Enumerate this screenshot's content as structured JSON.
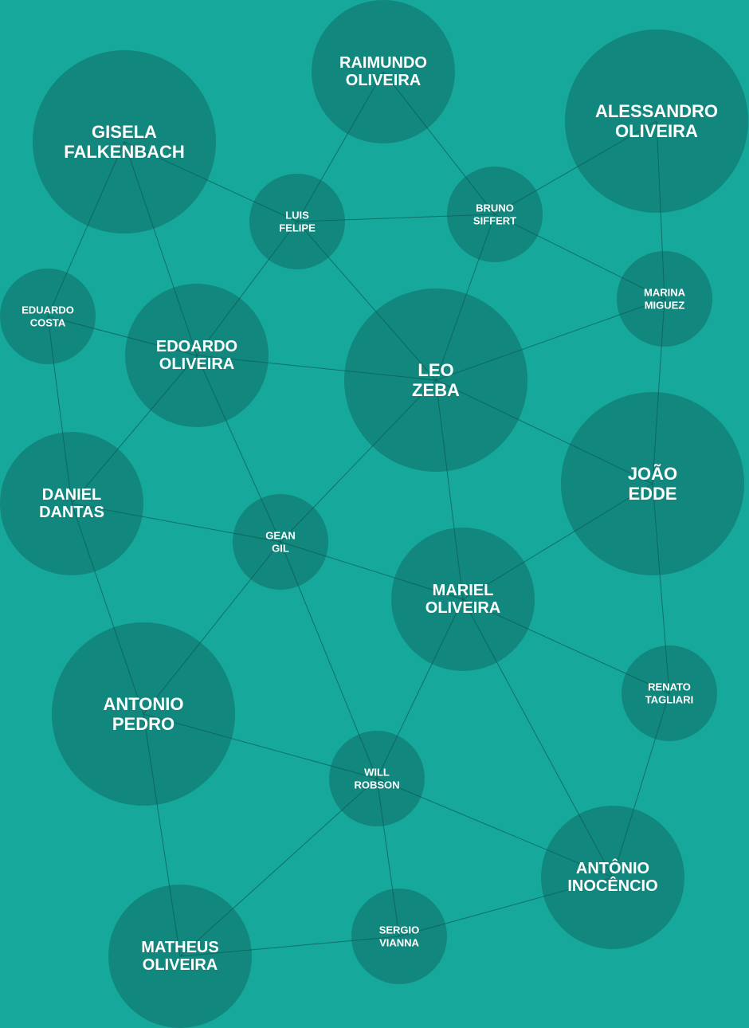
{
  "colors": {
    "background": "#17a89c",
    "node_fill": "#12877d",
    "edge": "#0b5e57",
    "label": "#ffffff"
  },
  "nodes": [
    {
      "id": "raimundo",
      "lines": [
        "RAIMUNDO",
        "OLIVEIRA"
      ],
      "size": "m"
    },
    {
      "id": "gisela",
      "lines": [
        "GISELA",
        "FALKENBACH"
      ],
      "size": "l"
    },
    {
      "id": "alessandro",
      "lines": [
        "ALESSANDRO",
        "OLIVEIRA"
      ],
      "size": "l"
    },
    {
      "id": "luis",
      "lines": [
        "LUIS",
        "FELIPE"
      ],
      "size": "s"
    },
    {
      "id": "bruno",
      "lines": [
        "BRUNO",
        "SIFFERT"
      ],
      "size": "s"
    },
    {
      "id": "marina",
      "lines": [
        "MARINA",
        "MIGUEZ"
      ],
      "size": "s"
    },
    {
      "id": "eduardo",
      "lines": [
        "EDUARDO",
        "COSTA"
      ],
      "size": "s"
    },
    {
      "id": "edoardo",
      "lines": [
        "EDOARDO",
        "OLIVEIRA"
      ],
      "size": "m"
    },
    {
      "id": "leo",
      "lines": [
        "LEO",
        "ZEBA"
      ],
      "size": "l"
    },
    {
      "id": "joao",
      "lines": [
        "JOÃO",
        "EDDE"
      ],
      "size": "l"
    },
    {
      "id": "daniel",
      "lines": [
        "DANIEL",
        "DANTAS"
      ],
      "size": "m"
    },
    {
      "id": "gean",
      "lines": [
        "GEAN",
        "GIL"
      ],
      "size": "s"
    },
    {
      "id": "mariel",
      "lines": [
        "MARIEL",
        "OLIVEIRA"
      ],
      "size": "m"
    },
    {
      "id": "renato",
      "lines": [
        "RENATO",
        "TAGLIARI"
      ],
      "size": "s"
    },
    {
      "id": "antonio_pedro",
      "lines": [
        "ANTONIO",
        "PEDRO"
      ],
      "size": "l"
    },
    {
      "id": "will",
      "lines": [
        "WILL",
        "ROBSON"
      ],
      "size": "s"
    },
    {
      "id": "antonio_inocencio",
      "lines": [
        "ANTÔNIO",
        "INOCÊNCIO"
      ],
      "size": "m"
    },
    {
      "id": "matheus",
      "lines": [
        "MATHEUS",
        "OLIVEIRA"
      ],
      "size": "m"
    },
    {
      "id": "sergio",
      "lines": [
        "SERGIO",
        "VIANNA"
      ],
      "size": "s"
    }
  ],
  "edges": [
    [
      "gisela",
      "luis"
    ],
    [
      "gisela",
      "eduardo"
    ],
    [
      "gisela",
      "edoardo"
    ],
    [
      "raimundo",
      "luis"
    ],
    [
      "raimundo",
      "bruno"
    ],
    [
      "luis",
      "bruno"
    ],
    [
      "luis",
      "edoardo"
    ],
    [
      "luis",
      "leo"
    ],
    [
      "bruno",
      "alessandro"
    ],
    [
      "bruno",
      "marina"
    ],
    [
      "bruno",
      "leo"
    ],
    [
      "alessandro",
      "marina"
    ],
    [
      "marina",
      "leo"
    ],
    [
      "marina",
      "joao"
    ],
    [
      "eduardo",
      "edoardo"
    ],
    [
      "eduardo",
      "daniel"
    ],
    [
      "edoardo",
      "leo"
    ],
    [
      "edoardo",
      "daniel"
    ],
    [
      "edoardo",
      "gean"
    ],
    [
      "leo",
      "joao"
    ],
    [
      "leo",
      "gean"
    ],
    [
      "leo",
      "mariel"
    ],
    [
      "joao",
      "mariel"
    ],
    [
      "joao",
      "renato"
    ],
    [
      "daniel",
      "gean"
    ],
    [
      "daniel",
      "antonio_pedro"
    ],
    [
      "gean",
      "mariel"
    ],
    [
      "gean",
      "antonio_pedro"
    ],
    [
      "gean",
      "will"
    ],
    [
      "mariel",
      "renato"
    ],
    [
      "mariel",
      "will"
    ],
    [
      "mariel",
      "antonio_inocencio"
    ],
    [
      "renato",
      "antonio_inocencio"
    ],
    [
      "antonio_pedro",
      "will"
    ],
    [
      "antonio_pedro",
      "matheus"
    ],
    [
      "will",
      "matheus"
    ],
    [
      "will",
      "sergio"
    ],
    [
      "will",
      "antonio_inocencio"
    ],
    [
      "sergio",
      "matheus"
    ],
    [
      "sergio",
      "antonio_inocencio"
    ]
  ]
}
